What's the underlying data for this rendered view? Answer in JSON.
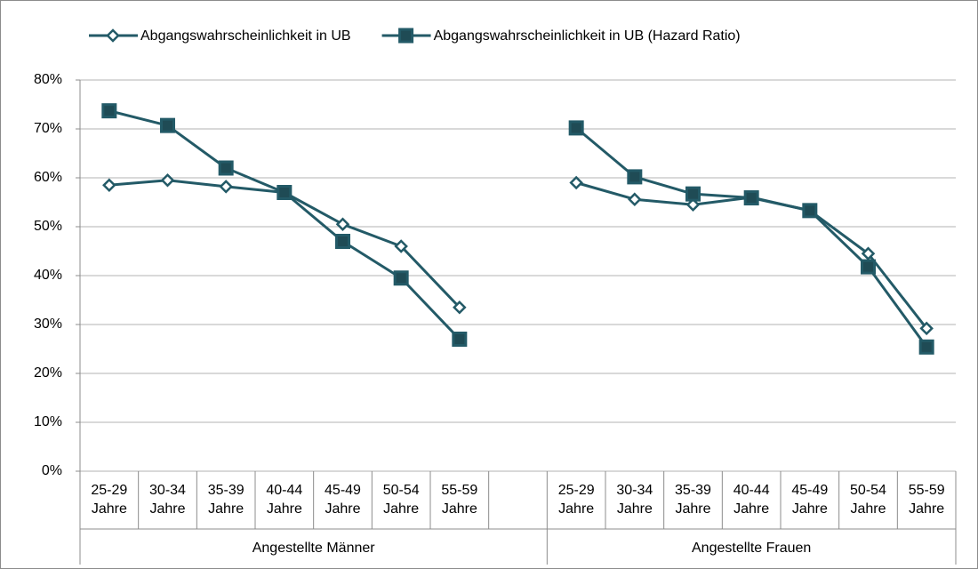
{
  "chart_data": {
    "type": "line",
    "categories": [
      "25-29 Jahre",
      "30-34 Jahre",
      "35-39 Jahre",
      "40-44 Jahre",
      "45-49 Jahre",
      "50-54 Jahre",
      "55-59 Jahre",
      null,
      "25-29 Jahre",
      "30-34 Jahre",
      "35-39 Jahre",
      "40-44 Jahre",
      "45-49 Jahre",
      "50-54 Jahre",
      "55-59 Jahre"
    ],
    "group_labels": [
      "Angestellte Männer",
      "Angestellte Frauen"
    ],
    "series": [
      {
        "name": "Abgangswahrscheinlichkeit in UB",
        "color": "#235a67",
        "marker": "diamond",
        "values": [
          58.5,
          59.5,
          58.2,
          57,
          50.5,
          46,
          33.5,
          null,
          59,
          55.6,
          54.5,
          56,
          53.3,
          44.5,
          29.2
        ]
      },
      {
        "name": "Abgangswahrscheinlichkeit in UB (Hazard Ratio)",
        "color": "#235a67",
        "marker": "square",
        "values": [
          73.7,
          70.7,
          62,
          57,
          47,
          39.5,
          27,
          null,
          70.2,
          60.2,
          56.7,
          55.9,
          53.3,
          41.8,
          25.4
        ]
      }
    ],
    "ylim": [
      0,
      80
    ],
    "yticks": [
      {
        "value": 0,
        "label": "0%"
      },
      {
        "value": 10,
        "label": "10%"
      },
      {
        "value": 20,
        "label": "20%"
      },
      {
        "value": 30,
        "label": "30%"
      },
      {
        "value": 40,
        "label": "40%"
      },
      {
        "value": 50,
        "label": "50%"
      },
      {
        "value": 60,
        "label": "60%"
      },
      {
        "value": 70,
        "label": "70%"
      },
      {
        "value": 80,
        "label": "80%"
      }
    ],
    "grid": true,
    "legend": "top"
  }
}
